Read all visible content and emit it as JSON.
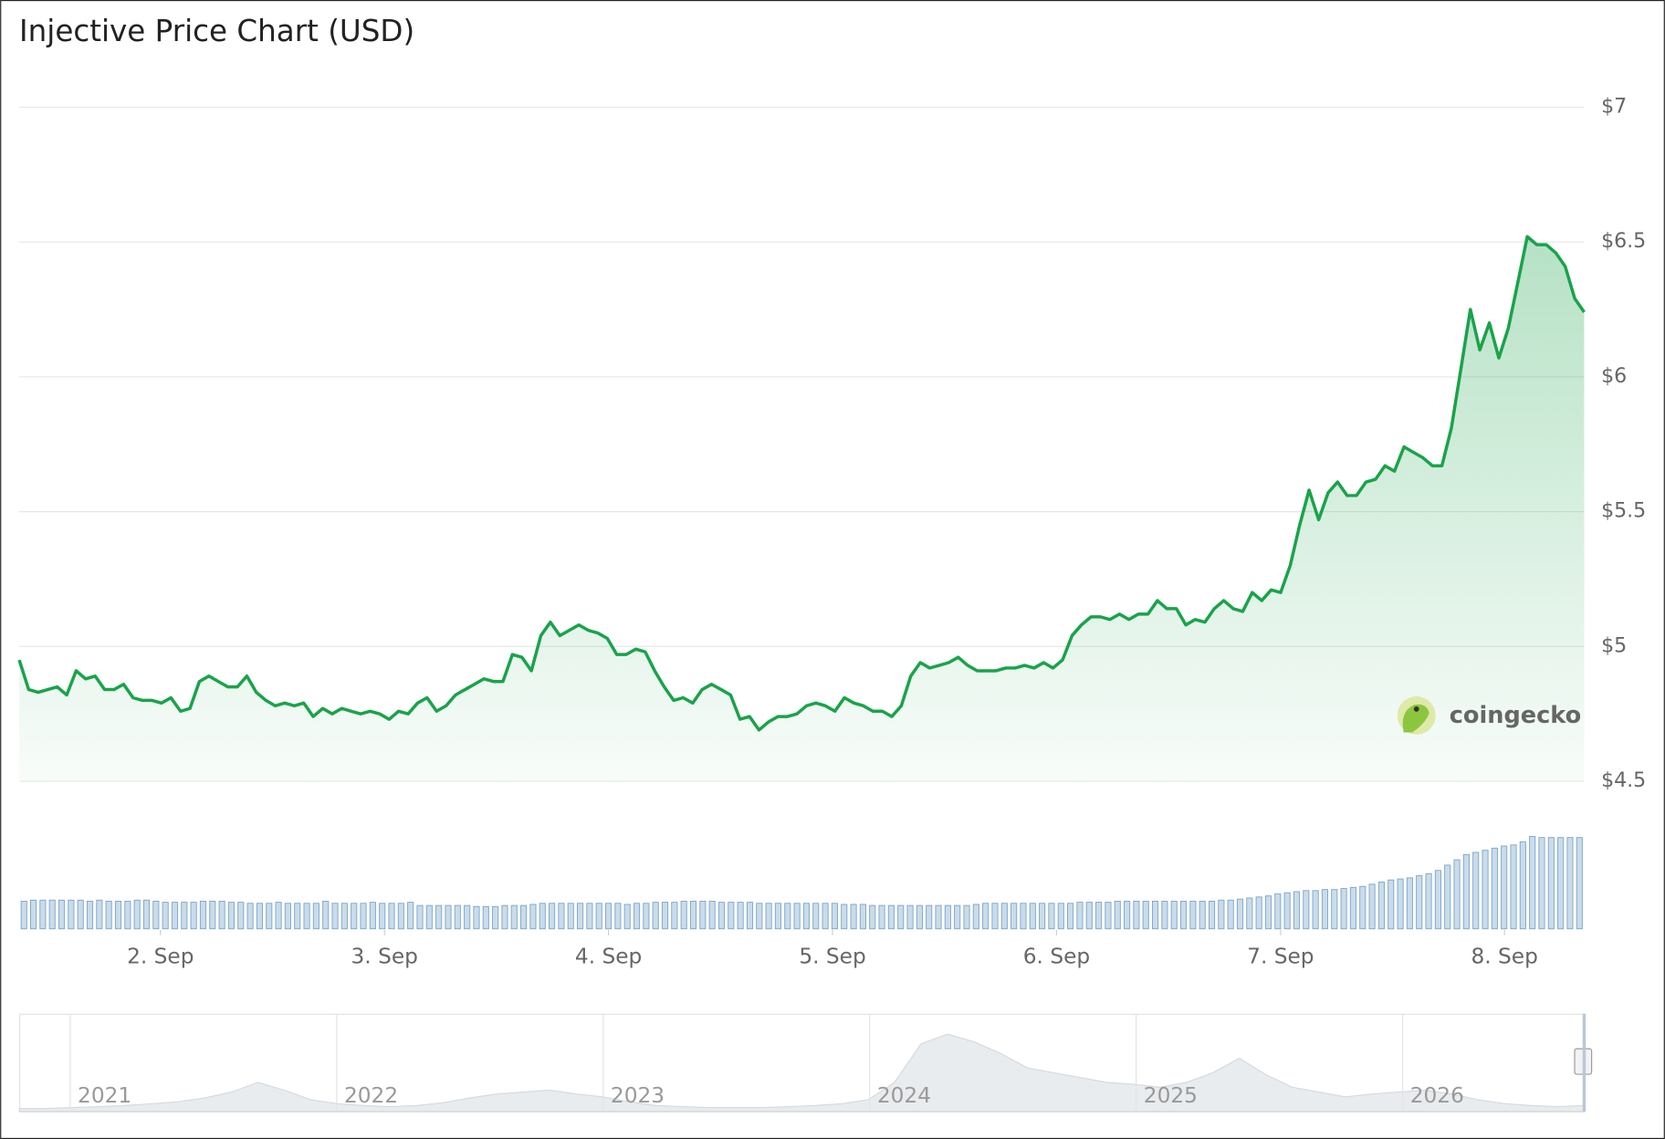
{
  "chart_data": {
    "type": "line",
    "title": "Injective Price Chart (USD)",
    "watermark": "coingecko",
    "series": [
      {
        "name": "Price",
        "color": "#1aa34a",
        "values": [
          4.95,
          4.84,
          4.83,
          4.84,
          4.85,
          4.82,
          4.91,
          4.88,
          4.89,
          4.84,
          4.84,
          4.86,
          4.81,
          4.8,
          4.8,
          4.79,
          4.81,
          4.76,
          4.77,
          4.87,
          4.89,
          4.87,
          4.85,
          4.85,
          4.89,
          4.83,
          4.8,
          4.78,
          4.79,
          4.78,
          4.79,
          4.74,
          4.77,
          4.75,
          4.77,
          4.76,
          4.75,
          4.76,
          4.75,
          4.73,
          4.76,
          4.75,
          4.79,
          4.81,
          4.76,
          4.78,
          4.82,
          4.84,
          4.86,
          4.88,
          4.87,
          4.87,
          4.97,
          4.96,
          4.91,
          5.04,
          5.09,
          5.04,
          5.06,
          5.08,
          5.06,
          5.05,
          5.03,
          4.97,
          4.97,
          4.99,
          4.98,
          4.91,
          4.85,
          4.8,
          4.81,
          4.79,
          4.84,
          4.86,
          4.84,
          4.82,
          4.73,
          4.74,
          4.69,
          4.72,
          4.74,
          4.74,
          4.75,
          4.78,
          4.79,
          4.78,
          4.76,
          4.81,
          4.79,
          4.78,
          4.76,
          4.76,
          4.74,
          4.78,
          4.89,
          4.94,
          4.92,
          4.93,
          4.94,
          4.96,
          4.93,
          4.91,
          4.91,
          4.91,
          4.92,
          4.92,
          4.93,
          4.92,
          4.94,
          4.92,
          4.95,
          5.04,
          5.08,
          5.11,
          5.11,
          5.1,
          5.12,
          5.1,
          5.12,
          5.12,
          5.17,
          5.14,
          5.14,
          5.08,
          5.1,
          5.09,
          5.14,
          5.17,
          5.14,
          5.13,
          5.2,
          5.17,
          5.21,
          5.2,
          5.3,
          5.45,
          5.58,
          5.47,
          5.57,
          5.61,
          5.56,
          5.56,
          5.61,
          5.62,
          5.67,
          5.65,
          5.74,
          5.72,
          5.7,
          5.67,
          5.67,
          5.81,
          6.03,
          6.25,
          6.1,
          6.2,
          6.07,
          6.18,
          6.35,
          6.52,
          6.49,
          6.49,
          6.46,
          6.41,
          6.29,
          6.24
        ]
      }
    ],
    "xlim": [
      0,
      165
    ],
    "xticks": [
      {
        "value": 14.89,
        "label": "2. Sep"
      },
      {
        "value": 38.51,
        "label": "3. Sep"
      },
      {
        "value": 62.13,
        "label": "4. Sep"
      },
      {
        "value": 85.75,
        "label": "5. Sep"
      },
      {
        "value": 109.37,
        "label": "6. Sep"
      },
      {
        "value": 132.99,
        "label": "7. Sep"
      },
      {
        "value": 156.6,
        "label": "8. Sep"
      }
    ],
    "ylim": [
      4.5,
      7
    ],
    "yticks": [
      {
        "value": 4.5,
        "label": "$4.5"
      },
      {
        "value": 5,
        "label": "$5"
      },
      {
        "value": 5.5,
        "label": "$5.5"
      },
      {
        "value": 6,
        "label": "$6"
      },
      {
        "value": 6.5,
        "label": "$6.5"
      },
      {
        "value": 7,
        "label": "$7"
      }
    ],
    "grid": true,
    "volume": {
      "color": "#c9dcec",
      "edge": "#7fa6c6",
      "ylim": [
        0,
        100
      ],
      "values": [
        26,
        27,
        27,
        27,
        27,
        27,
        27,
        26,
        27,
        26,
        26,
        26,
        27,
        27,
        26,
        25,
        25,
        25,
        25,
        26,
        26,
        26,
        25,
        25,
        24,
        24,
        24,
        25,
        24,
        24,
        24,
        24,
        26,
        24,
        24,
        24,
        24,
        25,
        24,
        24,
        24,
        25,
        22,
        22,
        22,
        22,
        22,
        22,
        21,
        21,
        21,
        22,
        22,
        22,
        23,
        24,
        24,
        24,
        24,
        24,
        24,
        24,
        24,
        24,
        23,
        24,
        24,
        25,
        25,
        25,
        26,
        26,
        26,
        26,
        25,
        25,
        25,
        25,
        24,
        24,
        24,
        24,
        24,
        24,
        24,
        24,
        24,
        23,
        23,
        23,
        22,
        22,
        22,
        22,
        22,
        22,
        22,
        22,
        22,
        22,
        22,
        23,
        24,
        24,
        24,
        24,
        24,
        24,
        24,
        24,
        24,
        24,
        25,
        25,
        25,
        25,
        26,
        26,
        26,
        26,
        26,
        26,
        26,
        26,
        26,
        26,
        26,
        27,
        27,
        28,
        29,
        30,
        31,
        33,
        34,
        35,
        36,
        36,
        37,
        37,
        38,
        39,
        40,
        42,
        44,
        46,
        47,
        48,
        50,
        52,
        55,
        60,
        65,
        70,
        72,
        74,
        76,
        78,
        79,
        82,
        87,
        86,
        86,
        86,
        86,
        86
      ]
    },
    "navigator": {
      "labels": [
        "2021",
        "2022",
        "2023",
        "2024",
        "2025",
        "2026"
      ],
      "ylim": [
        0,
        100
      ],
      "values": [
        3,
        3,
        4,
        5,
        6,
        8,
        10,
        14,
        20,
        30,
        22,
        12,
        8,
        6,
        5,
        6,
        9,
        14,
        18,
        20,
        22,
        18,
        15,
        10,
        6,
        5,
        4,
        4,
        4,
        5,
        6,
        8,
        12,
        30,
        70,
        80,
        72,
        60,
        45,
        40,
        35,
        30,
        28,
        25,
        30,
        40,
        55,
        38,
        25,
        20,
        15,
        18,
        20,
        22,
        18,
        12,
        8,
        6,
        5,
        6
      ]
    }
  }
}
